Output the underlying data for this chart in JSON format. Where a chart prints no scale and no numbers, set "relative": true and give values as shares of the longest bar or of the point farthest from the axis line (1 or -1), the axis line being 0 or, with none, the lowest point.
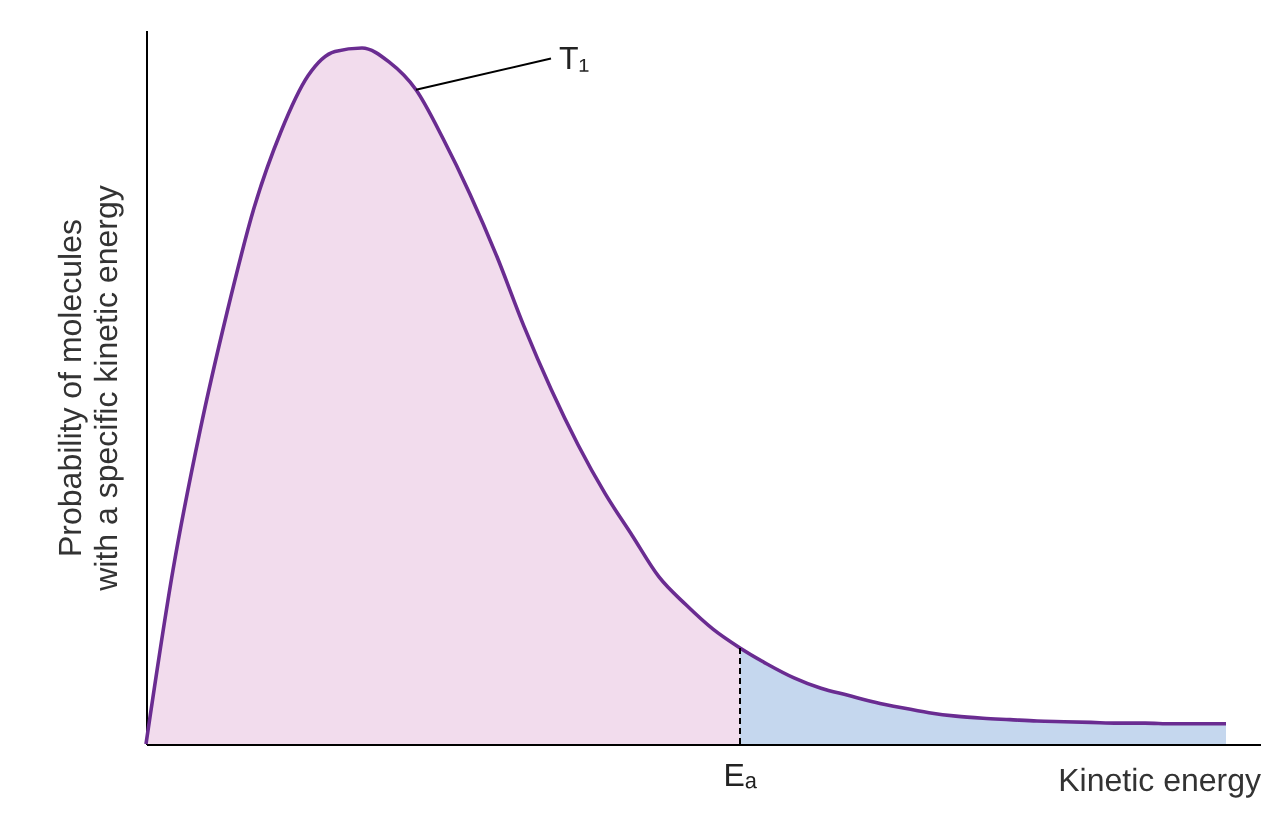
{
  "chart_data": {
    "type": "area",
    "relative": true,
    "xlabel": "Kinetic energy",
    "ylabel": "Probability of molecules\nwith a specific kinetic energy",
    "categories": [
      null,
      null,
      null,
      null,
      null,
      null,
      null,
      null,
      null,
      null,
      null,
      null,
      null,
      null,
      null,
      null,
      null,
      null,
      null,
      null,
      null,
      null,
      null,
      null,
      null,
      null,
      null,
      null,
      null,
      null,
      null,
      null,
      null,
      null,
      null,
      null,
      null,
      null,
      null,
      null,
      null
    ],
    "series": [
      {
        "color": "#f2dced",
        "values": [
          0,
          0.25,
          0.45,
          0.62,
          0.77,
          0.88,
          0.96,
          0.995,
          1.0,
          0.98,
          0.94,
          0.87,
          0.79,
          0.7,
          0.6,
          0.51,
          0.43,
          0.36,
          0.3,
          0.24,
          0.2,
          0.165,
          0.138,
          null,
          null,
          null,
          null,
          null,
          null,
          null,
          null,
          null,
          null,
          null,
          null,
          null,
          null,
          null,
          null,
          null,
          null
        ]
      },
      {
        "color": "#c5d7ee",
        "values": [
          null,
          null,
          null,
          null,
          null,
          null,
          null,
          null,
          null,
          null,
          null,
          null,
          null,
          null,
          null,
          null,
          null,
          null,
          null,
          null,
          null,
          null,
          0.138,
          0.115,
          0.095,
          0.08,
          0.07,
          0.06,
          0.052,
          0.045,
          0.04,
          0.037,
          0.035,
          0.033,
          0.032,
          0.031,
          0.03,
          0.03,
          0.029,
          0.029,
          0.029
        ]
      },
      {
        "type": "line",
        "color": "#6a2c91",
        "values": [
          0,
          0.25,
          0.45,
          0.62,
          0.77,
          0.88,
          0.96,
          0.995,
          1.0,
          0.98,
          0.94,
          0.87,
          0.79,
          0.7,
          0.6,
          0.51,
          0.43,
          0.36,
          0.3,
          0.24,
          0.2,
          0.165,
          0.138,
          0.115,
          0.095,
          0.08,
          0.07,
          0.06,
          0.052,
          0.045,
          0.04,
          0.037,
          0.035,
          0.033,
          0.032,
          0.031,
          0.03,
          0.03,
          0.029,
          0.029,
          0.029
        ]
      }
    ],
    "annotations": [
      "T₁",
      "Eₐ"
    ]
  }
}
